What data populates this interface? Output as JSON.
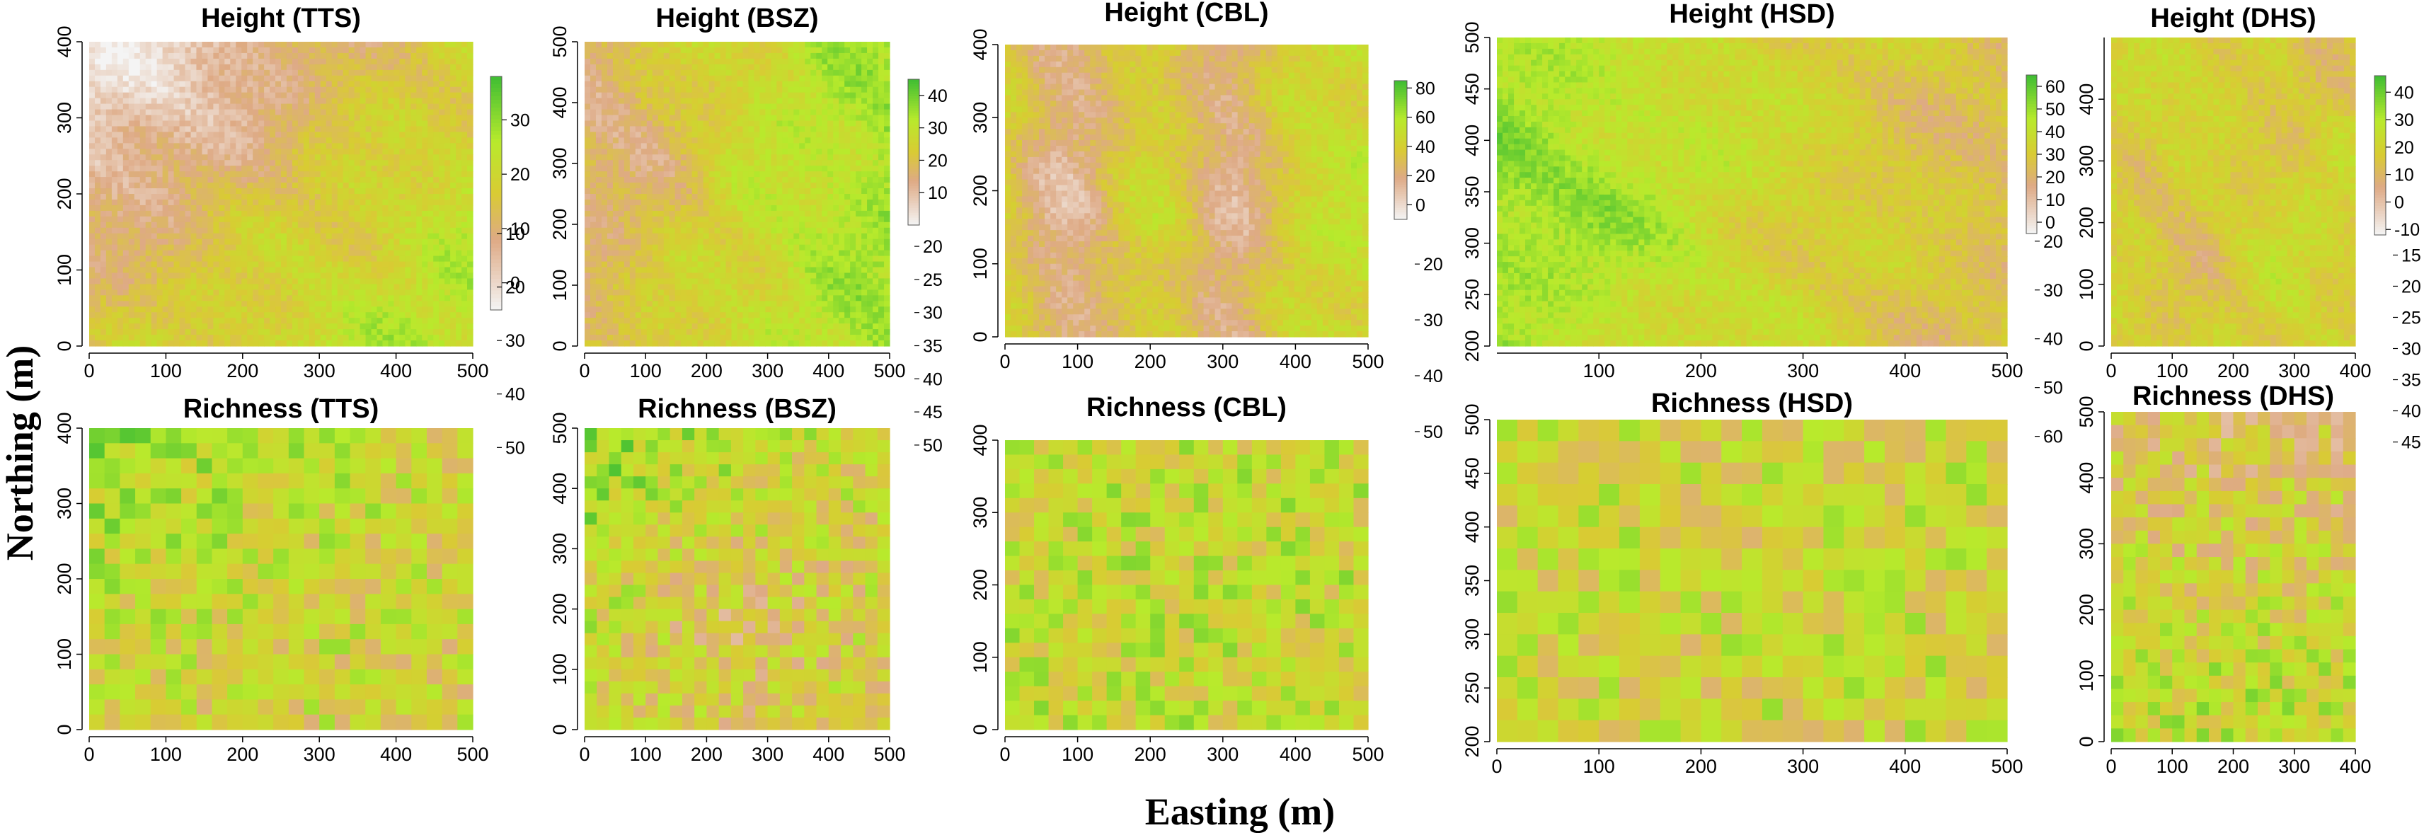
{
  "figure": {
    "xlabel": "Easting (m)",
    "ylabel": "Northing (m)"
  },
  "palette": {
    "low": "#f4f4f4",
    "mid_low": "#deaa85",
    "mid": "#d9cb33",
    "mid_high": "#b8ea2c",
    "high": "#3ebd33"
  },
  "chart_data": [
    {
      "type": "heatmap",
      "title": "Height (TTS)",
      "x_ticks": [
        0,
        100,
        200,
        300,
        400,
        500
      ],
      "y_ticks": [
        0,
        100,
        200,
        300,
        400
      ],
      "xlim": [
        0,
        500
      ],
      "ylim": [
        0,
        400
      ],
      "legend_ticks": [
        0,
        10,
        20,
        30
      ],
      "colorbar_range": [
        -5,
        38
      ],
      "grid_resolution": "fine",
      "pattern": "low heights in the northwest, tall canopy in the south-east"
    },
    {
      "type": "heatmap",
      "title": "Height (BSZ)",
      "x_ticks": [
        0,
        100,
        200,
        300,
        400,
        500
      ],
      "y_ticks": [
        0,
        100,
        200,
        300,
        400,
        500
      ],
      "xlim": [
        0,
        500
      ],
      "ylim": [
        0,
        500
      ],
      "legend_ticks": [
        10,
        20,
        30,
        40
      ],
      "colorbar_range": [
        0,
        45
      ],
      "grid_resolution": "fine",
      "pattern": "low heights across the west and north-west, taller in the east"
    },
    {
      "type": "heatmap",
      "title": "Height (CBL)",
      "x_ticks": [
        0,
        100,
        200,
        300,
        400,
        500
      ],
      "y_ticks": [
        0,
        100,
        200,
        300,
        400
      ],
      "xlim": [
        0,
        500
      ],
      "ylim": [
        0,
        400
      ],
      "legend_ticks": [
        0,
        20,
        40,
        60,
        80
      ],
      "colorbar_range": [
        -10,
        85
      ],
      "grid_resolution": "fine",
      "pattern": "two low north-south valleys at x~80 and x~310"
    },
    {
      "type": "heatmap",
      "title": "Height (HSD)",
      "x_ticks": [
        100,
        200,
        300,
        400,
        500
      ],
      "y_ticks": [
        200,
        250,
        300,
        350,
        400,
        450,
        500
      ],
      "xlim": [
        0,
        500
      ],
      "ylim": [
        200,
        500
      ],
      "legend_ticks": [
        0,
        10,
        20,
        30,
        40,
        50,
        60
      ],
      "colorbar_range": [
        -5,
        65
      ],
      "grid_resolution": "fine",
      "pattern": "tall canopy in the west, lower heights in the east"
    },
    {
      "type": "heatmap",
      "title": "Height (DHS)",
      "x_ticks": [
        0,
        100,
        200,
        300,
        400
      ],
      "y_ticks": [
        0,
        100,
        200,
        300,
        400
      ],
      "xlim": [
        0,
        400
      ],
      "ylim": [
        0,
        500
      ],
      "legend_ticks": [
        -10,
        0,
        10,
        20,
        30,
        40
      ],
      "colorbar_range": [
        -12,
        46
      ],
      "grid_resolution": "fine",
      "pattern": "mostly mid heights with scattered low patches"
    },
    {
      "type": "heatmap",
      "title": "Richness (TTS)",
      "x_ticks": [
        0,
        100,
        200,
        300,
        400,
        500
      ],
      "y_ticks": [
        0,
        100,
        200,
        300,
        400
      ],
      "xlim": [
        0,
        500
      ],
      "ylim": [
        0,
        400
      ],
      "legend_ticks": [
        10,
        20,
        30,
        40,
        50
      ],
      "colorbar_range": [
        10,
        53
      ],
      "grid_resolution": "20 m cells",
      "pattern": "higher richness in the north-west"
    },
    {
      "type": "heatmap",
      "title": "Richness (BSZ)",
      "x_ticks": [
        0,
        100,
        200,
        300,
        400,
        500
      ],
      "y_ticks": [
        0,
        100,
        200,
        300,
        400,
        500
      ],
      "xlim": [
        0,
        500
      ],
      "ylim": [
        0,
        500
      ],
      "legend_ticks": [
        20,
        25,
        30,
        35,
        40,
        45,
        50
      ],
      "colorbar_range": [
        17,
        53
      ],
      "grid_resolution": "20 m cells",
      "pattern": "higher richness in the north-west, low richness centre-south"
    },
    {
      "type": "heatmap",
      "title": "Richness (CBL)",
      "x_ticks": [
        0,
        100,
        200,
        300,
        400,
        500
      ],
      "y_ticks": [
        0,
        100,
        200,
        300,
        400
      ],
      "xlim": [
        0,
        500
      ],
      "ylim": [
        0,
        400
      ],
      "legend_ticks": [
        20,
        30,
        40,
        50
      ],
      "colorbar_range": [
        12,
        58
      ],
      "grid_resolution": "20 m cells",
      "pattern": "mostly mid-to-high richness, scattered low cells"
    },
    {
      "type": "heatmap",
      "title": "Richness (HSD)",
      "x_ticks": [
        0,
        100,
        200,
        300,
        400,
        500
      ],
      "y_ticks": [
        200,
        250,
        300,
        350,
        400,
        450,
        500
      ],
      "xlim": [
        0,
        500
      ],
      "ylim": [
        200,
        500
      ],
      "legend_ticks": [
        20,
        30,
        40,
        50,
        60
      ],
      "colorbar_range": [
        18,
        66
      ],
      "grid_resolution": "20 m cells",
      "pattern": "patchy mix of mid and high richness"
    },
    {
      "type": "heatmap",
      "title": "Richness (DHS)",
      "x_ticks": [
        0,
        100,
        200,
        300,
        400
      ],
      "y_ticks": [
        0,
        100,
        200,
        300,
        400,
        500
      ],
      "xlim": [
        0,
        400
      ],
      "ylim": [
        0,
        500
      ],
      "legend_ticks": [
        15,
        20,
        25,
        30,
        35,
        40,
        45
      ],
      "colorbar_range": [
        12,
        48
      ],
      "grid_resolution": "20 m cells",
      "pattern": "lower richness in the north, higher in the south"
    }
  ]
}
